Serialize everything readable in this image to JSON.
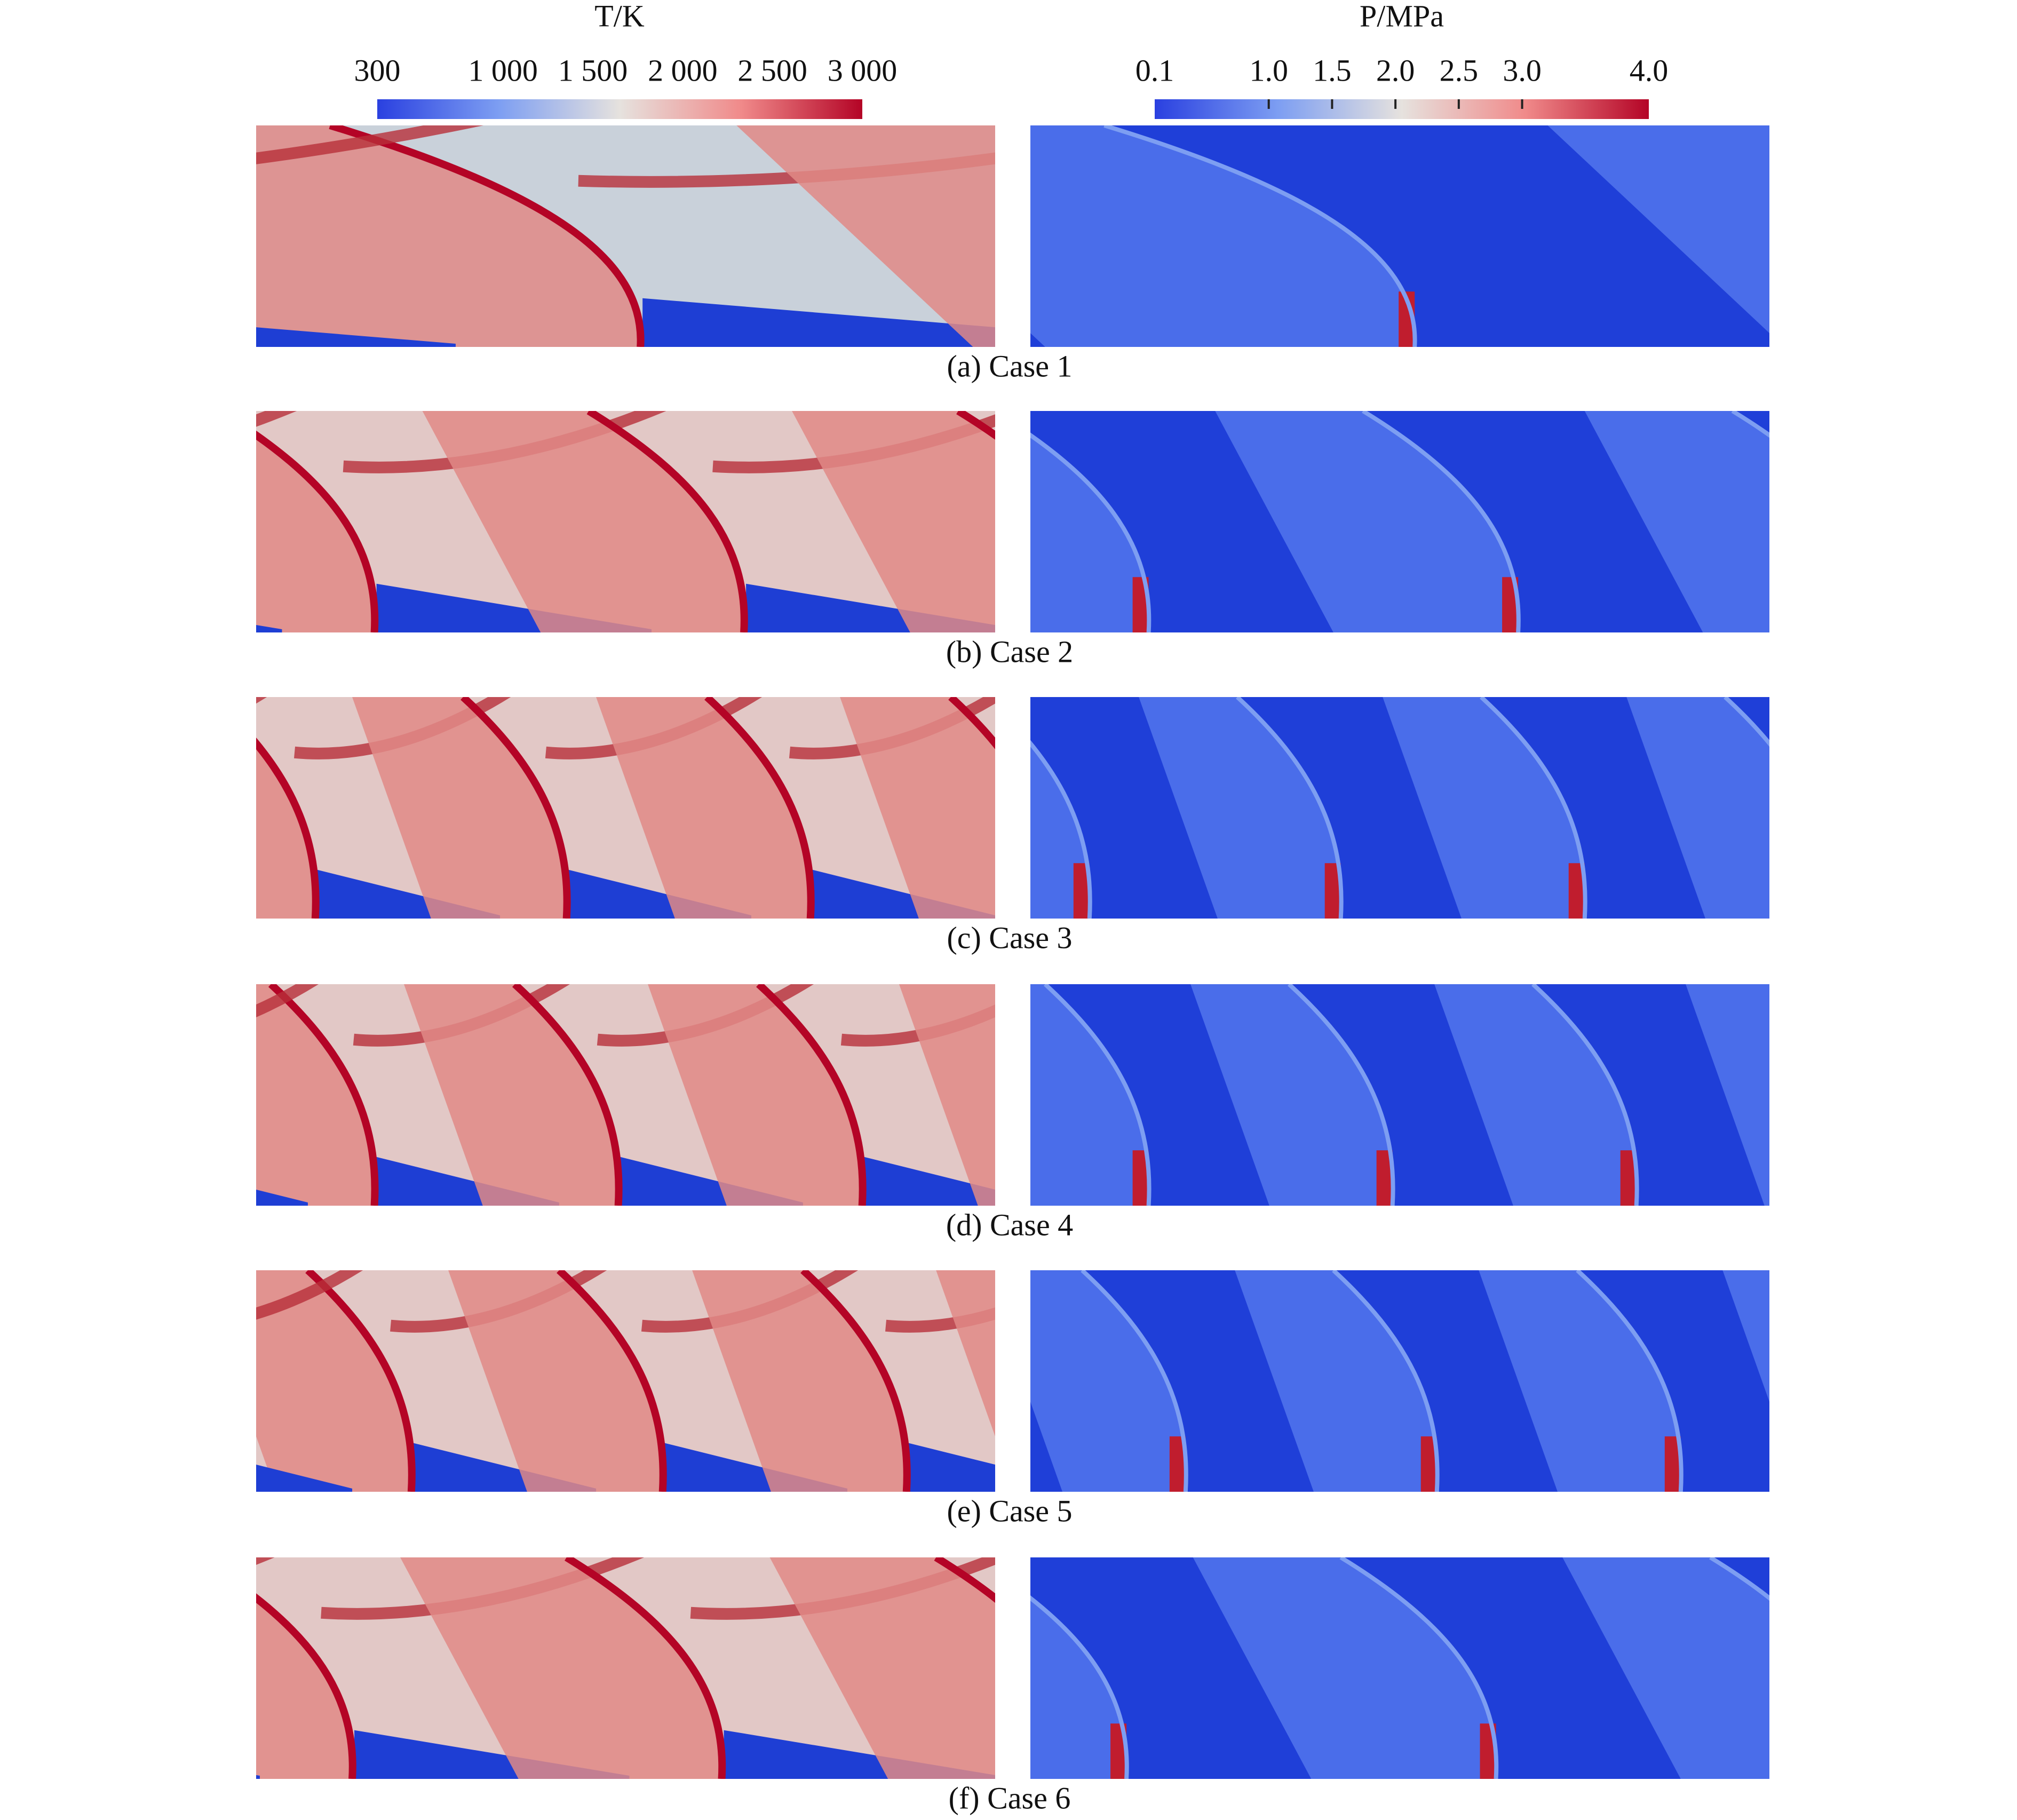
{
  "colorbars": [
    {
      "title": "T/K",
      "ticks": [
        300,
        {
          "value": 1000,
          "label": "1 000"
        },
        {
          "value": 1500,
          "label": "1 500"
        },
        {
          "value": 2000,
          "label": "2 000"
        },
        {
          "value": 2500,
          "label": "2 500"
        },
        {
          "value": 3000,
          "label": "3 000"
        }
      ]
    },
    {
      "title": "P/MPa",
      "ticks": [
        0.1,
        {
          "value": 1,
          "label": "1.0"
        },
        1.5,
        {
          "value": 2,
          "label": "2.0"
        },
        2.5,
        {
          "value": 3,
          "label": "3.0"
        },
        {
          "value": 4,
          "label": "4.0"
        }
      ]
    }
  ],
  "captions": [
    "(a) Case 1",
    "(b) Case 2",
    "(c) Case 3",
    "(d) Case 4",
    "(e) Case 5",
    "(f) Case 6"
  ]
}
